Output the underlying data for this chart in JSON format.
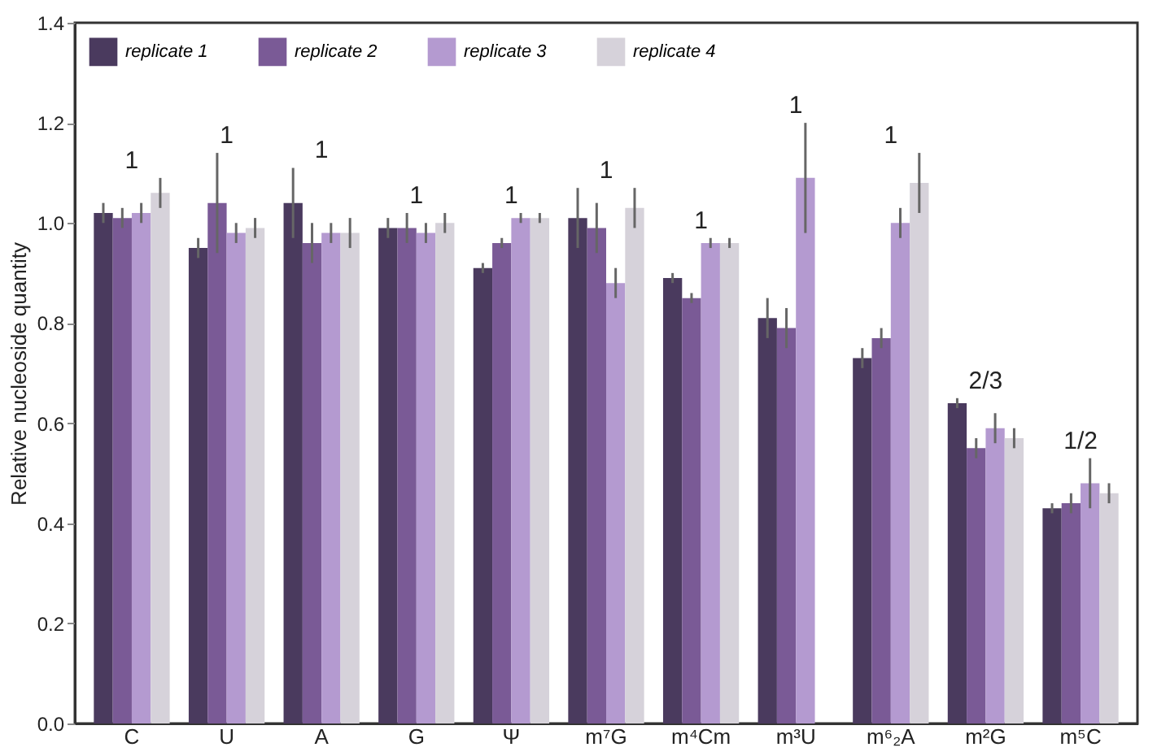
{
  "chart_data": {
    "type": "bar",
    "ylabel": "Relative nucleoside quantity",
    "categories": [
      "C",
      "U",
      "A",
      "G",
      "Ψ",
      "m⁷G",
      "m⁴Cm",
      "m³U",
      "m⁶₂A",
      "m²G",
      "m⁵C"
    ],
    "series": [
      {
        "name": "replicate 1",
        "color": "#4a3a5e",
        "values": [
          1.02,
          0.95,
          1.04,
          0.99,
          0.91,
          1.01,
          0.89,
          0.81,
          0.73,
          0.64,
          0.43
        ],
        "errors": [
          0.02,
          0.02,
          0.07,
          0.02,
          0.01,
          0.06,
          0.01,
          0.04,
          0.02,
          0.01,
          0.01
        ]
      },
      {
        "name": "replicate 2",
        "color": "#7a5a96",
        "values": [
          1.01,
          1.04,
          0.96,
          0.99,
          0.96,
          0.99,
          0.85,
          0.79,
          0.77,
          0.55,
          0.44
        ],
        "errors": [
          0.02,
          0.1,
          0.04,
          0.03,
          0.01,
          0.05,
          0.01,
          0.04,
          0.02,
          0.02,
          0.02
        ]
      },
      {
        "name": "replicate 3",
        "color": "#b49ad0",
        "values": [
          1.02,
          0.98,
          0.98,
          0.98,
          1.01,
          0.88,
          0.96,
          1.09,
          1.0,
          0.59,
          0.48
        ],
        "errors": [
          0.02,
          0.02,
          0.02,
          0.02,
          0.01,
          0.03,
          0.01,
          0.11,
          0.03,
          0.03,
          0.05
        ]
      },
      {
        "name": "replicate 4",
        "color": "#d6d2da",
        "values": [
          1.06,
          0.99,
          0.98,
          1.0,
          1.01,
          1.03,
          0.96,
          null,
          1.08,
          0.57,
          0.46
        ],
        "errors": [
          0.03,
          0.02,
          0.03,
          0.02,
          0.01,
          0.04,
          0.01,
          null,
          0.06,
          0.02,
          0.02
        ]
      }
    ],
    "ylim": [
      0,
      1.4
    ],
    "yticks": [
      {
        "value": 0,
        "label": "0.0"
      },
      0.2,
      0.4,
      0.6,
      0.8,
      {
        "value": 1,
        "label": "1.0"
      },
      1.2,
      1.4
    ],
    "annotations": [
      "1",
      "1",
      "1",
      "1",
      "1",
      "1",
      "1",
      "1",
      "1",
      "2/3",
      "1/2"
    ],
    "legend": "top left",
    "grid": false
  }
}
